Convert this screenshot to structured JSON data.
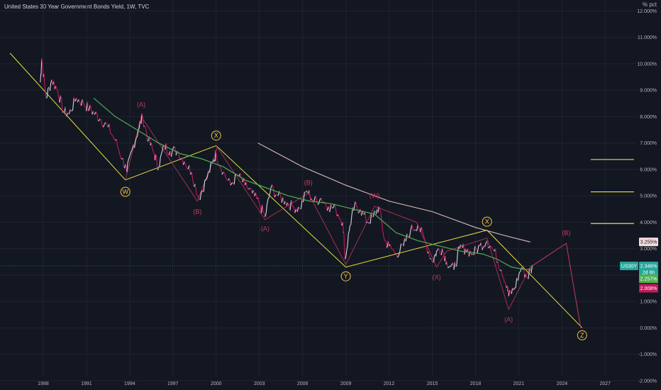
{
  "header": {
    "title": "United States 30 Year Government Bonds Yield, 1W, TVC",
    "unit": "% pct"
  },
  "colors": {
    "background": "#131722",
    "price": "#d1d4dc",
    "price_down": "#c2185b",
    "ma_fast": "#4caf50",
    "ma_slow": "#e0bcbc",
    "channel": "#e8e23a",
    "wave_orange": "#f5c542",
    "wave_red": "#c73a5a"
  },
  "chart_data": {
    "type": "line",
    "title": "United States 30 Year Government Bonds Yield, 1W, TVC",
    "xlabel": "",
    "ylabel": "",
    "xlim": [
      1985.0,
      2029.2
    ],
    "ylim": [
      -2.3,
      12.2
    ],
    "x_ticks": [
      "1988",
      "1991",
      "1994",
      "1997",
      "2000",
      "2003",
      "2006",
      "2009",
      "2012",
      "2015",
      "2018",
      "2021",
      "2024",
      "2027"
    ],
    "y_ticks": [
      "12.000%",
      "11.000%",
      "10.000%",
      "9.000%",
      "8.000%",
      "7.000%",
      "6.000%",
      "5.000%",
      "4.000%",
      "3.000%",
      "2.000%",
      "1.000%",
      "0.000%",
      "-1.000%",
      "-2.000%"
    ],
    "series": [
      {
        "name": "US30Y",
        "type": "price",
        "x": [
          1987.8,
          1987.9,
          1988.2,
          1988.6,
          1989.0,
          1989.4,
          1989.8,
          1990.3,
          1990.8,
          1991.2,
          1991.6,
          1992.0,
          1992.5,
          1993.0,
          1993.5,
          1993.8,
          1994.2,
          1994.6,
          1994.9,
          1995.3,
          1995.7,
          1996.0,
          1996.4,
          1996.8,
          1997.3,
          1997.8,
          1998.3,
          1998.8,
          1999.3,
          1999.8,
          2000.0,
          2000.5,
          2001.0,
          2001.5,
          2002.0,
          2002.5,
          2003.0,
          2003.4,
          2003.8,
          2004.3,
          2004.8,
          2005.3,
          2005.8,
          2006.3,
          2006.8,
          2007.3,
          2007.8,
          2008.3,
          2008.8,
          2008.95,
          2009.3,
          2009.6,
          2010.0,
          2010.5,
          2010.9,
          2011.3,
          2011.7,
          2012.0,
          2012.5,
          2013.0,
          2013.5,
          2014.0,
          2014.5,
          2015.0,
          2015.3,
          2015.7,
          2016.0,
          2016.5,
          2016.9,
          2017.3,
          2017.8,
          2018.3,
          2018.8,
          2019.3,
          2019.8,
          2020.2,
          2020.3,
          2020.7,
          2021.2,
          2021.6,
          2022.0
        ],
        "y": [
          9.3,
          10.2,
          8.7,
          9.4,
          9.0,
          8.2,
          8.1,
          8.7,
          8.5,
          8.3,
          8.1,
          7.9,
          7.6,
          7.1,
          6.4,
          5.9,
          6.8,
          7.5,
          8.0,
          7.1,
          6.6,
          6.1,
          6.9,
          6.7,
          6.7,
          6.3,
          5.9,
          4.9,
          5.6,
          6.3,
          6.6,
          5.9,
          5.4,
          5.8,
          5.4,
          5.1,
          4.7,
          4.2,
          5.3,
          5.0,
          4.8,
          4.6,
          4.5,
          5.2,
          4.8,
          4.9,
          4.6,
          4.5,
          4.0,
          2.6,
          3.9,
          4.6,
          4.5,
          4.0,
          4.2,
          4.6,
          3.3,
          3.1,
          2.8,
          3.1,
          3.7,
          3.9,
          3.3,
          2.5,
          2.9,
          3.0,
          2.5,
          2.2,
          3.0,
          3.0,
          2.8,
          3.1,
          3.3,
          2.9,
          2.2,
          1.6,
          1.2,
          1.5,
          2.3,
          1.9,
          2.35
        ]
      },
      {
        "name": "MA fast",
        "type": "line",
        "x": [
          1991.5,
          1993.0,
          1994.5,
          1996.0,
          1997.5,
          1999.0,
          2000.5,
          2002.0,
          2003.5,
          2005.0,
          2006.5,
          2008.0,
          2009.5,
          2011.0,
          2012.5,
          2014.0,
          2015.5,
          2017.0,
          2018.5,
          2019.5,
          2020.5,
          2021.5,
          2022.0
        ],
        "y": [
          8.7,
          8.0,
          7.5,
          7.0,
          6.6,
          6.4,
          6.1,
          5.6,
          5.3,
          5.0,
          4.8,
          4.7,
          4.5,
          4.3,
          3.6,
          3.3,
          3.1,
          2.9,
          2.8,
          2.6,
          2.3,
          2.2,
          2.26
        ]
      },
      {
        "name": "MA slow",
        "type": "line",
        "x": [
          2002.9,
          2006.0,
          2009.0,
          2012.0,
          2015.0,
          2018.0,
          2020.0,
          2021.8
        ],
        "y": [
          7.0,
          6.1,
          5.4,
          4.8,
          4.4,
          3.8,
          3.5,
          3.25
        ]
      }
    ],
    "channel_lines": [
      {
        "x": [
          1985.7,
          1993.7,
          2000.0,
          2009.0,
          2018.8,
          2025.4
        ],
        "y": [
          10.4,
          5.6,
          6.9,
          2.3,
          3.7,
          0.0
        ]
      }
    ],
    "projection": {
      "x": [
        2021.8,
        2024.3,
        2025.3
      ],
      "y": [
        2.3,
        3.2,
        0.0
      ]
    },
    "red_waves": [
      {
        "x": [
          1993.7,
          1994.8,
          1998.7,
          1999.9,
          2000.1
        ],
        "y": [
          5.6,
          8.0,
          4.8,
          6.5,
          6.9
        ]
      },
      {
        "x": [
          2000.0,
          2003.4,
          2006.4,
          2009.0,
          2011.0,
          2013.9,
          2015.3,
          2016.0,
          2018.8,
          2020.3,
          2021.8
        ],
        "y": [
          6.9,
          4.1,
          5.1,
          2.4,
          4.6,
          4.0,
          2.3,
          2.9,
          3.4,
          0.7,
          2.3
        ]
      }
    ],
    "horizontal_levels": [
      6.375,
      5.15,
      3.95
    ],
    "current_line": 2.346,
    "wave_labels": {
      "orange": [
        {
          "text": "W",
          "x": 1993.7,
          "y": 5.15
        },
        {
          "text": "X",
          "x": 2000.0,
          "y": 7.28
        },
        {
          "text": "Y",
          "x": 2009.0,
          "y": 1.95
        },
        {
          "text": "X",
          "x": 2018.8,
          "y": 4.02
        },
        {
          "text": "Z",
          "x": 2025.4,
          "y": -0.28
        }
      ],
      "red": [
        {
          "text": "(A)",
          "x": 1994.8,
          "y": 8.45
        },
        {
          "text": "(B)",
          "x": 1998.7,
          "y": 4.4
        },
        {
          "text": "(A)",
          "x": 2003.4,
          "y": 3.75
        },
        {
          "text": "(B)",
          "x": 2006.4,
          "y": 5.5
        },
        {
          "text": "(W)",
          "x": 2011.0,
          "y": 5.0
        },
        {
          "text": "(X)",
          "x": 2015.3,
          "y": 1.92
        },
        {
          "text": "(A)",
          "x": 2020.3,
          "y": 0.32
        },
        {
          "text": "(B)",
          "x": 2024.3,
          "y": 3.6
        }
      ]
    },
    "price_tags": [
      {
        "label": "3.255%",
        "value": 3.255,
        "bg": "#f4dcdc",
        "fg": "#131722"
      },
      {
        "label": "US30Y",
        "value": 2.346,
        "bg": "#26a69a",
        "fg": "#ffffff"
      },
      {
        "label": "2.346%",
        "value": 2.346,
        "bg": "#26a69a",
        "fg": "#ffffff"
      },
      {
        "label": "2d 6h",
        "value": 2.1,
        "bg": "#26a69a",
        "fg": "#ffffff"
      },
      {
        "label": "2.257%",
        "value": 1.86,
        "bg": "#4caf50",
        "fg": "#ffffff"
      },
      {
        "label": "2.008%",
        "value": 1.5,
        "bg": "#c2185b",
        "fg": "#ffffff"
      }
    ]
  }
}
